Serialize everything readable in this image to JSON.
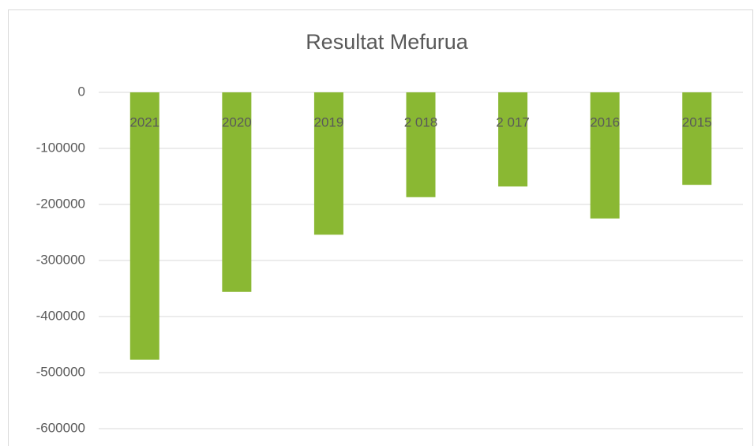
{
  "chart_data": {
    "type": "bar",
    "title": "Resultat Mefurua",
    "categories": [
      "2021",
      "2020",
      "2019",
      "2 018",
      "2 017",
      "2016",
      "2015"
    ],
    "values": [
      -477000,
      -356000,
      -254000,
      -187000,
      -168000,
      -225000,
      -165000
    ],
    "color": "#8ab833",
    "ylim": [
      -600000,
      0
    ],
    "yticks": [
      0,
      -100000,
      -200000,
      -300000,
      -400000,
      -500000,
      -600000
    ],
    "grid": true
  }
}
